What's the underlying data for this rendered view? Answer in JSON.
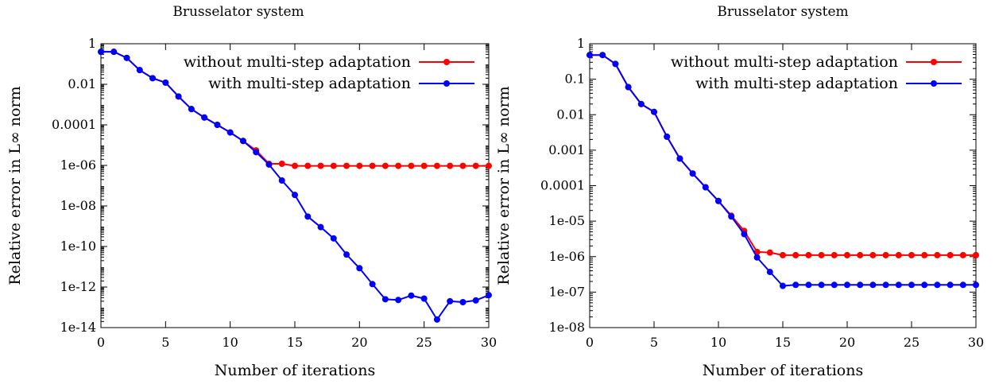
{
  "chart_data": [
    {
      "type": "line",
      "title": "Brusselator system",
      "xlabel": "Number of iterations",
      "ylabel": "Relative error in L∞ norm",
      "xlim": [
        0,
        30
      ],
      "ylim": [
        1e-14,
        1
      ],
      "y_scale": "log",
      "x_ticks": [
        "0",
        "5",
        "10",
        "15",
        "20",
        "25",
        "30"
      ],
      "y_ticks": [
        "1",
        "0.01",
        "0.0001",
        "1e-06",
        "1e-08",
        "1e-10",
        "1e-12",
        "1e-14"
      ],
      "legend_position": "top-right",
      "series": [
        {
          "name": "without multi-step adaptation",
          "color": "#ff0000",
          "x": [
            0,
            1,
            2,
            3,
            4,
            5,
            6,
            7,
            8,
            9,
            10,
            11,
            12,
            13,
            14,
            15,
            16,
            17,
            18,
            19,
            20,
            21,
            22,
            23,
            24,
            25,
            26,
            27,
            28,
            29,
            30
          ],
          "values": [
            0.4,
            0.4,
            0.2,
            0.05,
            0.02,
            0.012,
            0.0025,
            0.0006,
            0.00023,
            0.0001,
            4.2e-05,
            1.6e-05,
            5.5e-06,
            1.2e-06,
            1.2e-06,
            9.5e-07,
            9.5e-07,
            9.5e-07,
            9.5e-07,
            9.5e-07,
            9.5e-07,
            9.5e-07,
            9.5e-07,
            9.5e-07,
            9.5e-07,
            9.5e-07,
            9.5e-07,
            9.5e-07,
            9.5e-07,
            9.5e-07,
            9.5e-07
          ]
        },
        {
          "name": "with multi-step adaptation",
          "color": "#0000ff",
          "x": [
            0,
            1,
            2,
            3,
            4,
            5,
            6,
            7,
            8,
            9,
            10,
            11,
            12,
            13,
            14,
            15,
            16,
            17,
            18,
            19,
            20,
            21,
            22,
            23,
            24,
            25,
            26,
            27,
            28,
            29,
            30
          ],
          "values": [
            0.4,
            0.4,
            0.2,
            0.05,
            0.02,
            0.012,
            0.0025,
            0.0006,
            0.00023,
            0.0001,
            4.2e-05,
            1.6e-05,
            4.5e-06,
            1.1e-06,
            1.8e-07,
            3.5e-08,
            3e-09,
            9e-10,
            2.5e-10,
            4e-11,
            8.5e-12,
            1.4e-12,
            2.5e-13,
            2.3e-13,
            3.8e-13,
            2.7e-13,
            2.5e-14,
            2e-13,
            1.8e-13,
            2.2e-13,
            4e-13
          ]
        }
      ]
    },
    {
      "type": "line",
      "title": "Brusselator system",
      "xlabel": "Number of iterations",
      "ylabel": "Relative error in L∞ norm",
      "xlim": [
        0,
        30
      ],
      "ylim": [
        1e-08,
        1
      ],
      "y_scale": "log",
      "x_ticks": [
        "0",
        "5",
        "10",
        "15",
        "20",
        "25",
        "30"
      ],
      "y_ticks": [
        "1",
        "0.1",
        "0.01",
        "0.001",
        "0.0001",
        "1e-05",
        "1e-06",
        "1e-07",
        "1e-08"
      ],
      "legend_position": "top-right",
      "series": [
        {
          "name": "without multi-step adaptation",
          "color": "#ff0000",
          "x": [
            0,
            1,
            2,
            3,
            4,
            5,
            6,
            7,
            8,
            9,
            10,
            11,
            12,
            13,
            14,
            15,
            16,
            17,
            18,
            19,
            20,
            21,
            22,
            23,
            24,
            25,
            26,
            27,
            28,
            29,
            30
          ],
          "values": [
            0.48,
            0.48,
            0.27,
            0.06,
            0.02,
            0.012,
            0.0024,
            0.00058,
            0.00022,
            9e-05,
            3.7e-05,
            1.43e-05,
            5.3e-06,
            1.35e-06,
            1.3e-06,
            1.1e-06,
            1.1e-06,
            1.1e-06,
            1.1e-06,
            1.1e-06,
            1.1e-06,
            1.1e-06,
            1.1e-06,
            1.1e-06,
            1.1e-06,
            1.1e-06,
            1.1e-06,
            1.1e-06,
            1.1e-06,
            1.1e-06,
            1.1e-06
          ]
        },
        {
          "name": "with multi-step adaptation",
          "color": "#0000ff",
          "x": [
            0,
            1,
            2,
            3,
            4,
            5,
            6,
            7,
            8,
            9,
            10,
            11,
            12,
            13,
            14,
            15,
            16,
            17,
            18,
            19,
            20,
            21,
            22,
            23,
            24,
            25,
            26,
            27,
            28,
            29,
            30
          ],
          "values": [
            0.48,
            0.48,
            0.27,
            0.06,
            0.02,
            0.012,
            0.0024,
            0.00058,
            0.00022,
            9e-05,
            3.7e-05,
            1.35e-05,
            4.3e-06,
            9.5e-07,
            3.7e-07,
            1.5e-07,
            1.6e-07,
            1.6e-07,
            1.6e-07,
            1.6e-07,
            1.6e-07,
            1.6e-07,
            1.6e-07,
            1.6e-07,
            1.6e-07,
            1.6e-07,
            1.6e-07,
            1.6e-07,
            1.6e-07,
            1.6e-07,
            1.6e-07
          ]
        }
      ]
    }
  ]
}
